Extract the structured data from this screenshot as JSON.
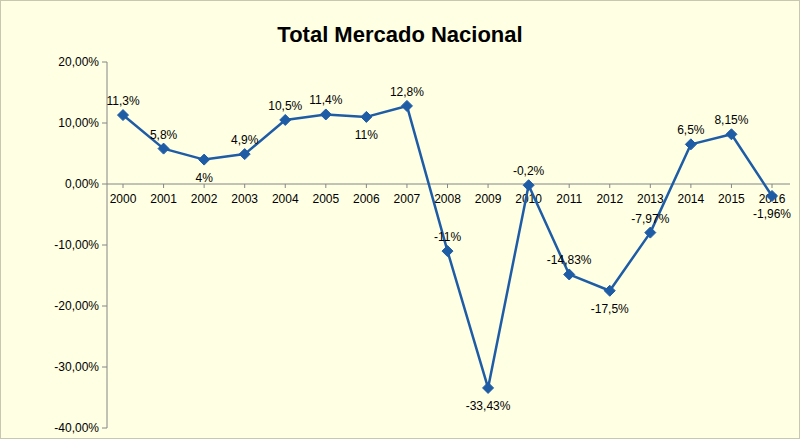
{
  "chart_data": {
    "type": "line",
    "title": "Total Mercado Nacional",
    "categories": [
      "2000",
      "2001",
      "2002",
      "2003",
      "2004",
      "2005",
      "2006",
      "2007",
      "2008",
      "2009",
      "2010",
      "2011",
      "2012",
      "2013",
      "2014",
      "2015",
      "2016"
    ],
    "values": [
      11.3,
      5.8,
      4,
      4.9,
      10.5,
      11.4,
      11,
      12.8,
      -11,
      -33.43,
      -0.2,
      -14.83,
      -17.5,
      -7.97,
      6.5,
      8.15,
      -1.96
    ],
    "value_labels": [
      "11,3%",
      "5,8%",
      "4%",
      "4,9%",
      "10,5%",
      "11,4%",
      "11%",
      "12,8%",
      "-11%",
      "-33,43%",
      "-0,2%",
      "-14,83%",
      "-17,5%",
      "-7,97%",
      "6,5%",
      "8,15%",
      "-1,96%"
    ],
    "color": "#1F5CA6",
    "marker": "diamond",
    "grid": false,
    "data_labels": true,
    "ylim": [
      -40,
      20
    ],
    "yticks": [
      {
        "value": -40,
        "label": "-40,00%"
      },
      {
        "value": -30,
        "label": "-30,00%"
      },
      {
        "value": -20,
        "label": "-20,00%"
      },
      {
        "value": -10,
        "label": "-10,00%"
      },
      {
        "value": 0,
        "label": "0,00%"
      },
      {
        "value": 10,
        "label": "10,00%"
      },
      {
        "value": 20,
        "label": "20,00%"
      }
    ]
  }
}
